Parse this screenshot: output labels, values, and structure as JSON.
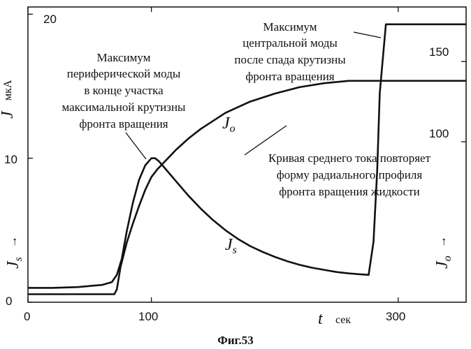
{
  "chart_data": {
    "type": "line",
    "caption": "Фиг.53",
    "x_axis": {
      "symbol": "t",
      "unit": "сек",
      "range": [
        0,
        355
      ],
      "ticks": [
        "0",
        "100",
        "300"
      ],
      "tick_values": [
        0,
        100,
        300
      ]
    },
    "y_left": {
      "symbol": "J",
      "unit": "мкА",
      "range": [
        0,
        20.5
      ],
      "ticks": [
        "0",
        "10",
        "20"
      ],
      "tick_values": [
        0,
        10,
        20
      ],
      "series_marker_main": "J",
      "series_marker_sub": "s",
      "arrow": "→"
    },
    "y_right": {
      "range": [
        0,
        184
      ],
      "ticks": [
        "100",
        "150"
      ],
      "tick_values": [
        100,
        150
      ],
      "series_marker_main": "J",
      "series_marker_sub": "o",
      "arrow": "→"
    },
    "series": [
      {
        "name": "Js",
        "label_main": "J",
        "label_sub": "s",
        "axis": "left",
        "x": [
          0,
          20,
          40,
          60,
          68,
          72,
          76,
          80,
          85,
          90,
          95,
          100,
          103,
          106,
          110,
          120,
          130,
          140,
          150,
          160,
          170,
          180,
          190,
          200,
          210,
          220,
          230,
          240,
          250,
          260,
          268,
          276,
          280,
          283,
          285,
          290,
          300,
          320,
          340,
          355
        ],
        "y": [
          1.0,
          1.0,
          1.05,
          1.2,
          1.4,
          1.9,
          3.0,
          4.9,
          6.9,
          8.5,
          9.5,
          10.0,
          10.0,
          9.8,
          9.4,
          8.4,
          7.4,
          6.5,
          5.7,
          5.0,
          4.4,
          3.9,
          3.5,
          3.15,
          2.85,
          2.6,
          2.4,
          2.25,
          2.1,
          2.0,
          1.95,
          1.9,
          4.2,
          9.2,
          14.5,
          19.3,
          19.3,
          19.3,
          19.3,
          19.3
        ]
      },
      {
        "name": "Jo",
        "label_main": "J",
        "label_sub": "o",
        "axis": "right",
        "x": [
          0,
          40,
          60,
          70,
          72,
          75,
          80,
          85,
          90,
          95,
          100,
          105,
          110,
          115,
          120,
          130,
          140,
          160,
          180,
          200,
          220,
          240,
          260,
          270,
          280,
          300,
          320,
          340,
          355
        ],
        "y": [
          5,
          5,
          5,
          5,
          8,
          22,
          37,
          49,
          60,
          70,
          78,
          83,
          87,
          91,
          95,
          102,
          108,
          118,
          125,
          130,
          134,
          136.5,
          138,
          138,
          138,
          138,
          138,
          138,
          138
        ]
      }
    ],
    "annotations": {
      "peripheral": [
        "Максимум",
        "периферической моды",
        "в конце участка",
        "максимальной крутизны",
        "фронта вращения"
      ],
      "central": [
        "Максимум",
        "центральной моды",
        "после спада крутизны",
        "фронта вращения"
      ],
      "mean_current": [
        "Кривая среднего тока повторяет",
        "форму  радиального профиля",
        "фронта вращения жидкости"
      ]
    }
  }
}
